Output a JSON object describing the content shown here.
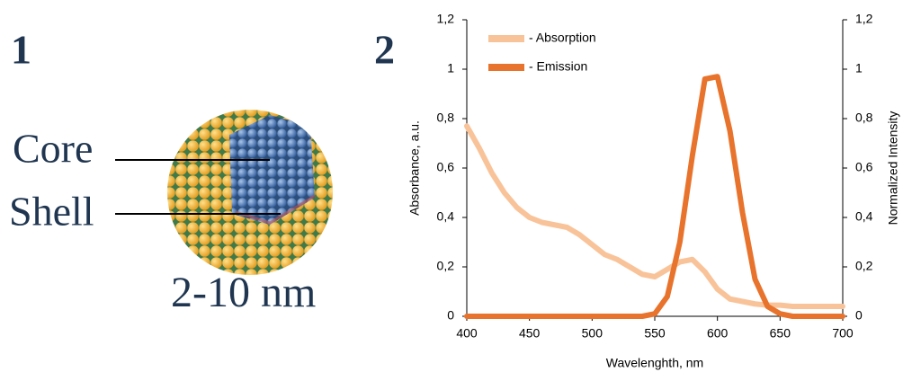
{
  "figure": {
    "panel_labels": [
      "1",
      "2"
    ],
    "core_label": "Core",
    "shell_label": "Shell",
    "size_label": "2-10 nm"
  },
  "chart_data": {
    "type": "line",
    "x_label": "Wavelenghth, nm",
    "y_label": "Absorbance, a.u.",
    "y2_label": "Normalized Intensity",
    "x": [
      400,
      410,
      420,
      430,
      440,
      450,
      460,
      470,
      480,
      490,
      500,
      510,
      520,
      530,
      540,
      550,
      560,
      570,
      580,
      590,
      600,
      610,
      620,
      630,
      640,
      650,
      660,
      670,
      680,
      690,
      700
    ],
    "series": [
      {
        "name": "- Absorption",
        "color": "#f9c39a",
        "values": [
          0.77,
          0.68,
          0.58,
          0.5,
          0.44,
          0.4,
          0.38,
          0.37,
          0.36,
          0.33,
          0.29,
          0.25,
          0.23,
          0.2,
          0.17,
          0.16,
          0.19,
          0.22,
          0.23,
          0.18,
          0.11,
          0.07,
          0.06,
          0.05,
          0.045,
          0.045,
          0.04,
          0.04,
          0.04,
          0.04,
          0.04
        ]
      },
      {
        "name": "- Emission",
        "color": "#e8732c",
        "axis": "y2",
        "values": [
          0,
          0,
          0,
          0,
          0,
          0,
          0,
          0,
          0,
          0,
          0,
          0,
          0,
          0,
          0,
          0.01,
          0.08,
          0.3,
          0.65,
          0.96,
          0.97,
          0.75,
          0.42,
          0.15,
          0.04,
          0.01,
          0,
          0,
          0,
          0,
          0
        ]
      }
    ],
    "xlim": [
      400,
      700
    ],
    "xticks": [
      400,
      450,
      500,
      550,
      600,
      650,
      700
    ],
    "ylim": [
      0,
      1.2
    ],
    "yticks": [
      0,
      {
        "value": 0.2,
        "label": "0,2"
      },
      {
        "value": 0.4,
        "label": "0,4"
      },
      {
        "value": 0.6,
        "label": "0,6"
      },
      {
        "value": 0.8,
        "label": "0,8"
      },
      1,
      {
        "value": 1.2,
        "label": "1,2"
      }
    ],
    "y2lim": [
      0,
      1.2
    ],
    "y2ticks": [
      0,
      {
        "value": 0.2,
        "label": "0,2"
      },
      {
        "value": 0.4,
        "label": "0,4"
      },
      {
        "value": 0.6,
        "label": "0,6"
      },
      {
        "value": 0.8,
        "label": "0,8"
      },
      1,
      {
        "value": 1.2,
        "label": "1,2"
      }
    ],
    "legend": "upper left",
    "grid": false
  }
}
